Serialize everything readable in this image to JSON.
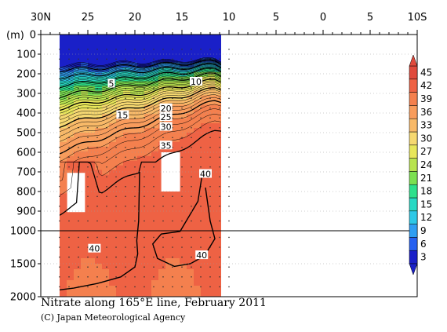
{
  "chart_data": {
    "type": "heatmap",
    "title": "Nitrate along 165°E line, February 2011",
    "credit": "(C) Japan Meteorological Agency",
    "ylabel": "(m)",
    "x_ticks": [
      "30N",
      "25",
      "20",
      "15",
      "10",
      "5",
      "0",
      "5",
      "10S"
    ],
    "x_tick_lat": [
      30,
      25,
      20,
      15,
      10,
      5,
      0,
      -5,
      -10
    ],
    "y_upper_ticks": [
      0,
      100,
      200,
      300,
      400,
      500,
      600,
      700,
      800,
      900,
      1000
    ],
    "y_lower_ticks": [
      1500,
      2000
    ],
    "ylim": [
      0,
      2000
    ],
    "data_lat_range": [
      28,
      10
    ],
    "colorbar": {
      "levels": [
        3,
        6,
        9,
        12,
        15,
        18,
        21,
        24,
        27,
        30,
        33,
        36,
        39,
        42,
        45
      ],
      "colors": [
        "#1a20c8",
        "#2660f0",
        "#2f9ef2",
        "#2dc8e6",
        "#28d9c4",
        "#2ee08c",
        "#7ce051",
        "#b8e34f",
        "#e8e65a",
        "#f6d870",
        "#f8b968",
        "#f89c5c",
        "#f4804e",
        "#ee6244",
        "#e04a3c"
      ]
    },
    "contour_labels": [
      {
        "text": "5",
        "lat": 22.5,
        "depth": 250
      },
      {
        "text": "10",
        "lat": 13.5,
        "depth": 240
      },
      {
        "text": "15",
        "lat": 21.3,
        "depth": 410
      },
      {
        "text": "20",
        "lat": 16.7,
        "depth": 375
      },
      {
        "text": "25",
        "lat": 16.7,
        "depth": 420
      },
      {
        "text": "30",
        "lat": 16.7,
        "depth": 470
      },
      {
        "text": "35",
        "lat": 16.7,
        "depth": 565
      },
      {
        "text": "40",
        "lat": 12.5,
        "depth": 710
      },
      {
        "text": "40",
        "lat": 24.3,
        "depth": 1270
      },
      {
        "text": "40",
        "lat": 12.9,
        "depth": 1370
      }
    ]
  }
}
